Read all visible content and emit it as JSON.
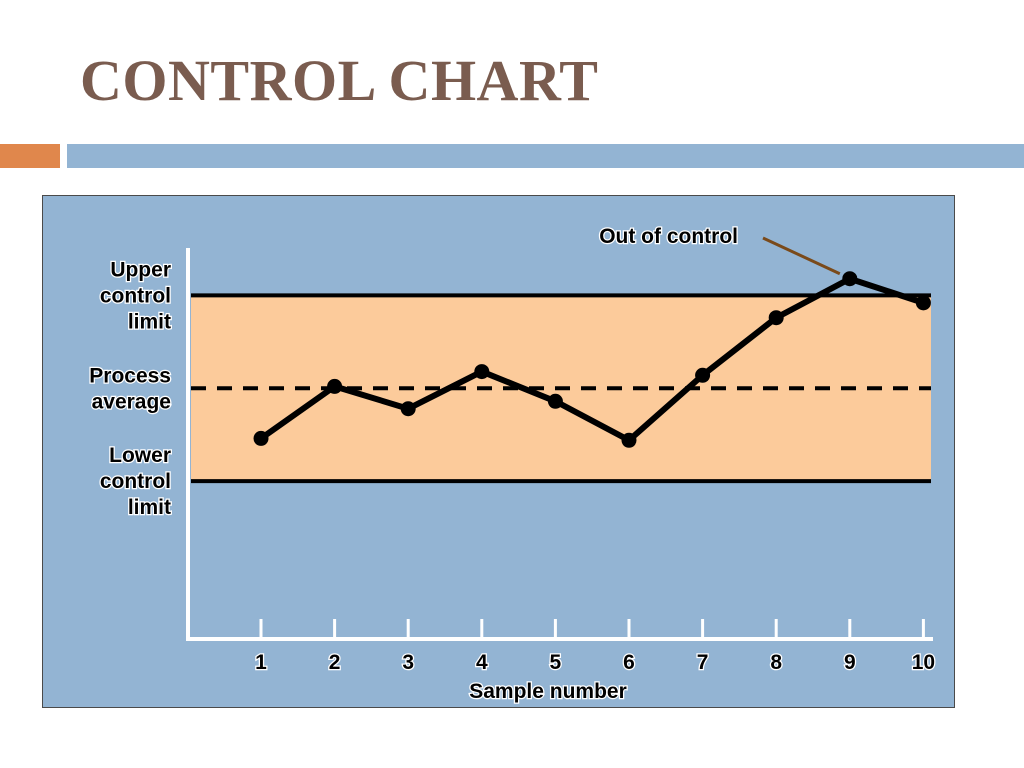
{
  "slide": {
    "title": "CONTROL CHART"
  },
  "colors": {
    "title": "#7a5c4f",
    "accent_orange": "#e0874c",
    "accent_blue": "#93b4d3",
    "panel_background": "#93b4d3",
    "control_band": "#fccb9b",
    "callout_line": "#7a4a1a"
  },
  "chart_data": {
    "type": "line",
    "title": "",
    "xlabel": "Sample number",
    "ylabel": "",
    "x": [
      1,
      2,
      3,
      4,
      5,
      6,
      7,
      8,
      9,
      10
    ],
    "series": [
      {
        "values": [
          1.3,
          4.1,
          2.9,
          4.9,
          3.3,
          1.2,
          4.7,
          7.8,
          9.9,
          8.6
        ]
      }
    ],
    "ylim": [
      -9.5,
      11.5
    ],
    "reference_lines": [
      {
        "name": "upper_control_limit",
        "label": [
          "Upper",
          "control",
          "limit"
        ],
        "value": 9.0,
        "style": "solid"
      },
      {
        "name": "process_average",
        "label": [
          "Process",
          "average"
        ],
        "value": 4.0,
        "style": "dashed"
      },
      {
        "name": "lower_control_limit",
        "label": [
          "Lower",
          "control",
          "limit"
        ],
        "value": -1.0,
        "style": "solid"
      }
    ],
    "annotations": [
      {
        "text": "Out of control",
        "target_x": 9
      }
    ],
    "grid": false,
    "legend": "none"
  }
}
